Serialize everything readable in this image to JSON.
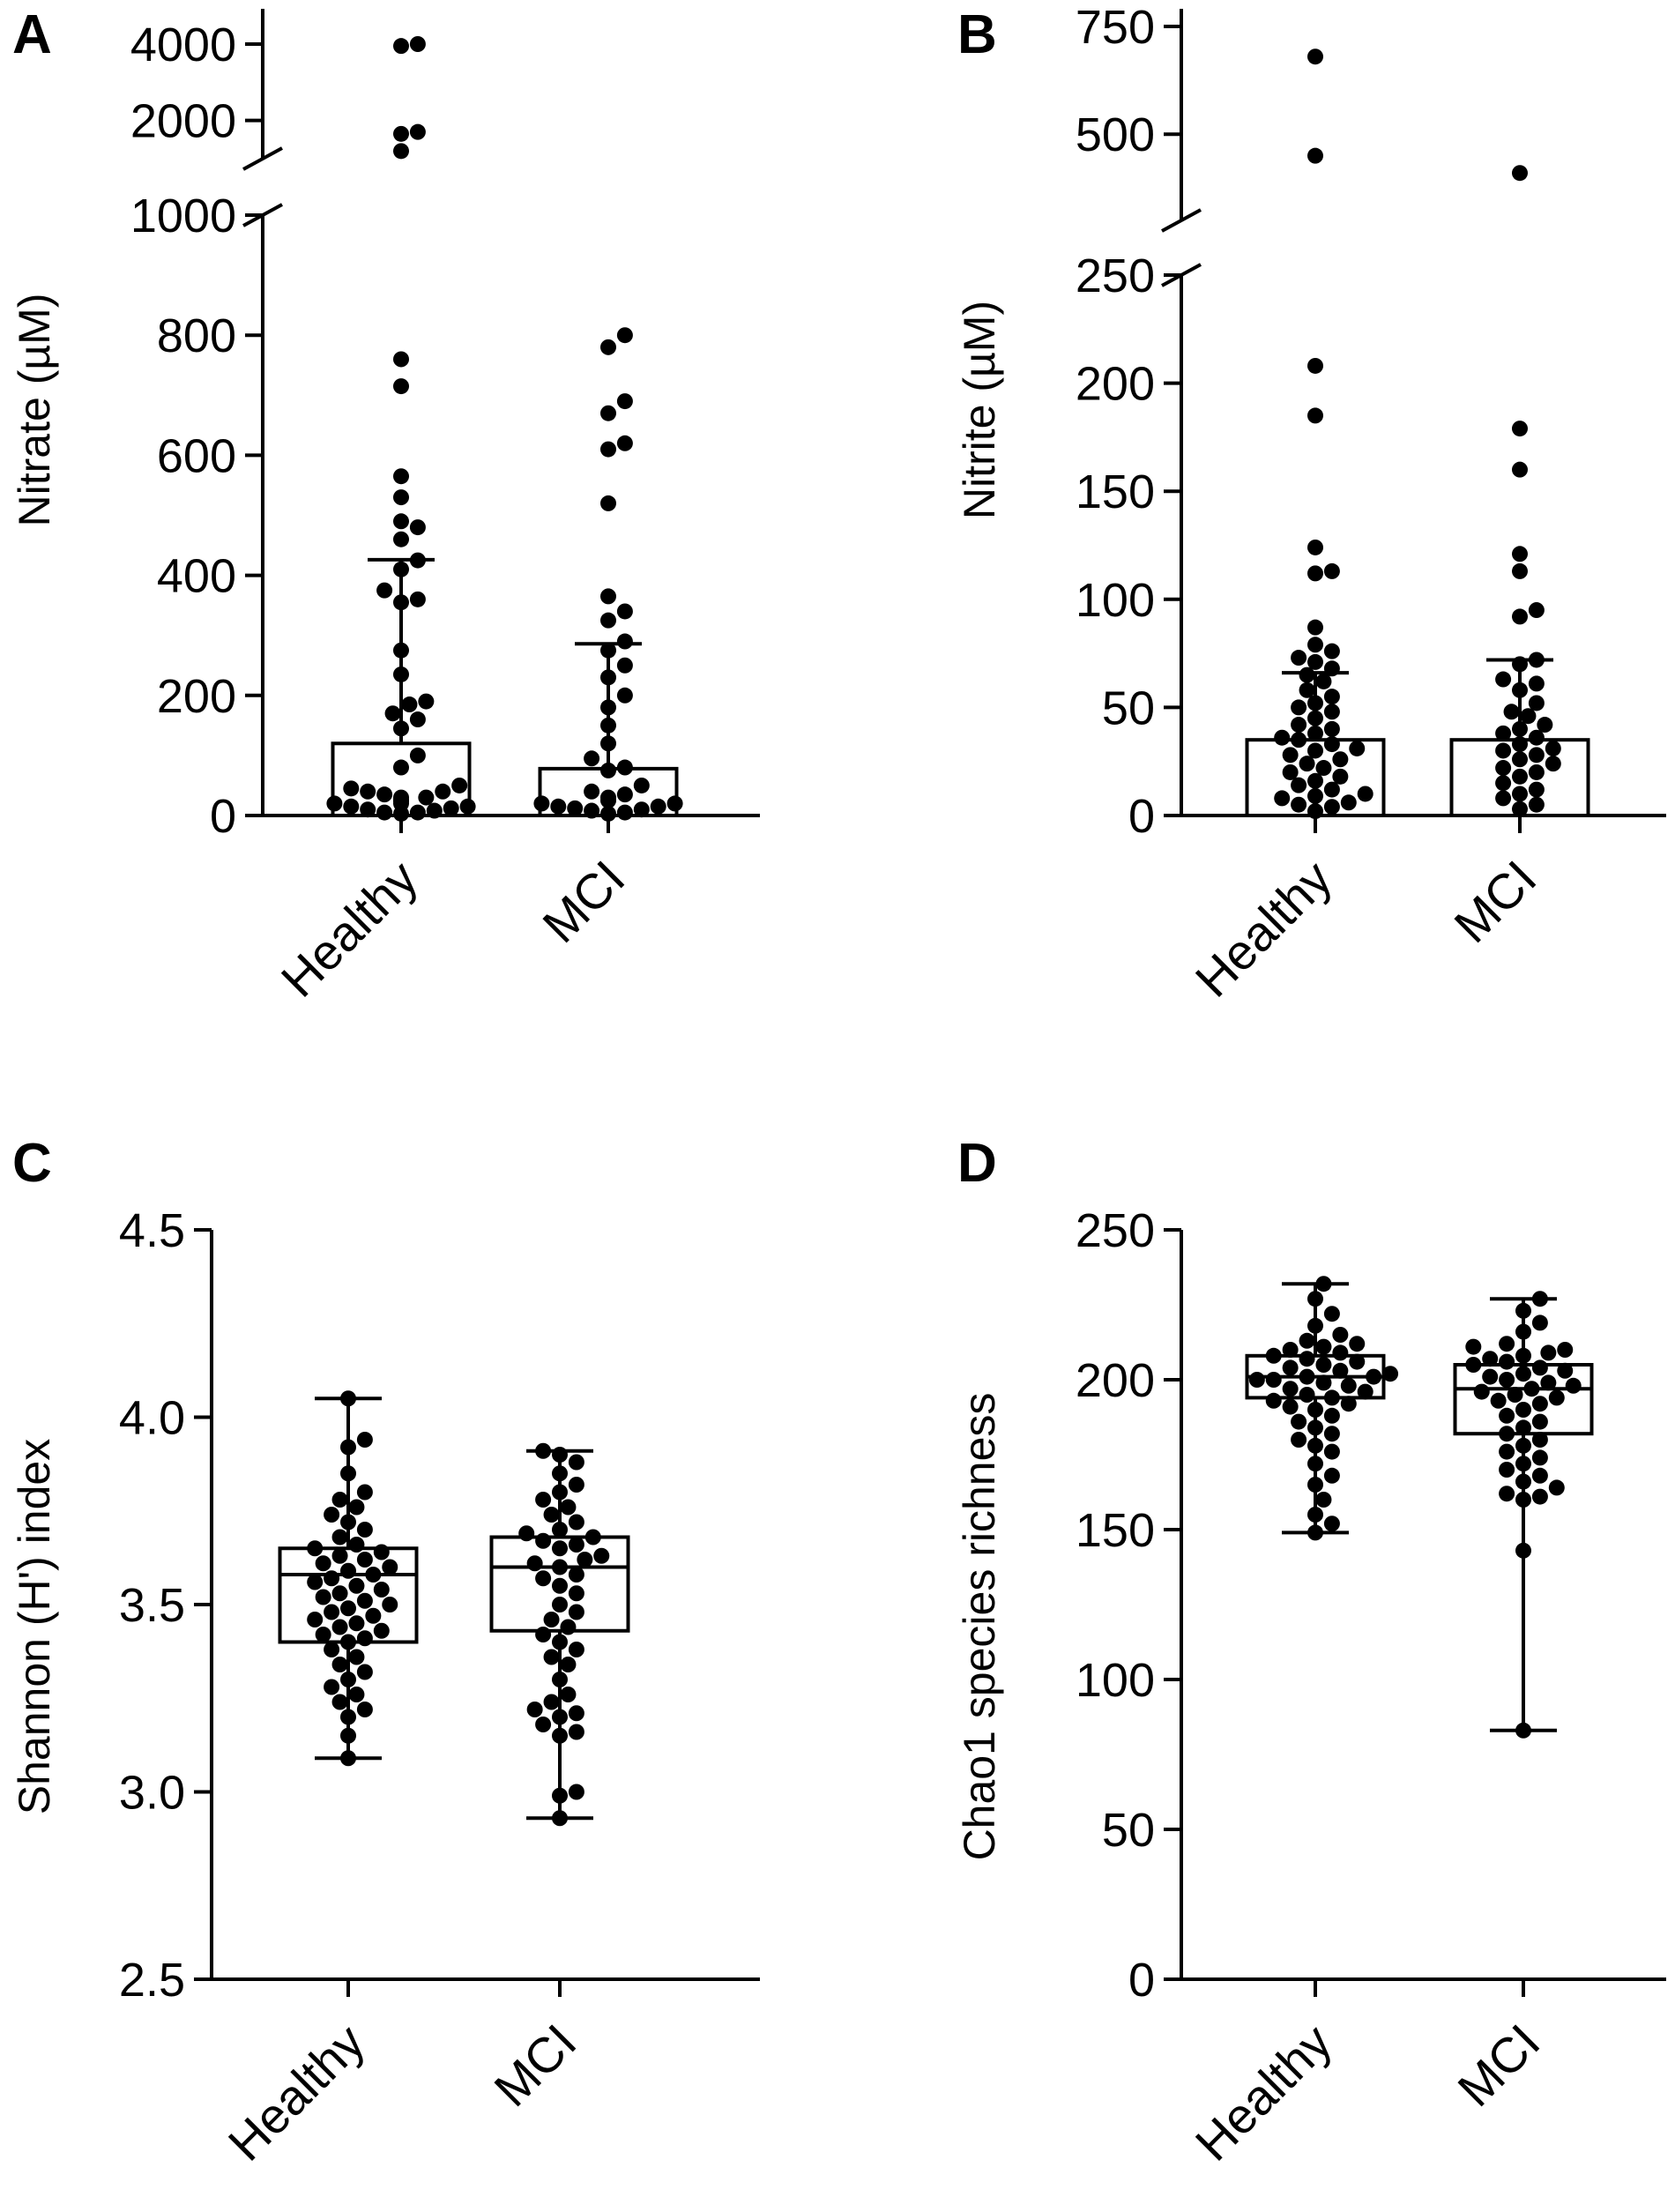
{
  "chart_data": [
    {
      "id": "A",
      "panel_label": "A",
      "type": "bar",
      "ylabel": "Nitrate (µM)",
      "categories": [
        "Healthy",
        "MCI"
      ],
      "y_segments": [
        {
          "ylim": [
            0,
            1000
          ],
          "ticks": [
            0,
            200,
            400,
            600,
            800,
            1000
          ]
        },
        {
          "ylim": [
            1000,
            4000
          ],
          "ticks": [
            2000,
            4000
          ]
        }
      ],
      "y_tick_labels": [
        "0",
        "200",
        "400",
        "600",
        "800",
        "1000",
        "2000",
        "4000"
      ],
      "series": [
        {
          "category": "Healthy",
          "bar": 120,
          "error": [
            null,
            426
          ],
          "points": [
            4000,
            3950,
            1700,
            1650,
            1200,
            760,
            715,
            565,
            530,
            490,
            480,
            460,
            425,
            410,
            375,
            360,
            355,
            275,
            235,
            190,
            185,
            170,
            160,
            145,
            100,
            80,
            50,
            45,
            40,
            40,
            35,
            30,
            30,
            25,
            25,
            20,
            20,
            15,
            15,
            12,
            10,
            8,
            5,
            5,
            3
          ]
        },
        {
          "category": "MCI",
          "bar": 78,
          "error": [
            null,
            286
          ],
          "points": [
            800,
            780,
            690,
            670,
            620,
            610,
            520,
            365,
            340,
            325,
            290,
            275,
            250,
            230,
            200,
            180,
            150,
            120,
            95,
            80,
            75,
            50,
            40,
            35,
            30,
            25,
            20,
            20,
            15,
            15,
            12,
            10,
            8,
            5,
            3
          ]
        }
      ]
    },
    {
      "id": "B",
      "panel_label": "B",
      "type": "bar",
      "ylabel": "Nitrite (µM)",
      "categories": [
        "Healthy",
        "MCI"
      ],
      "y_segments": [
        {
          "ylim": [
            0,
            250
          ],
          "ticks": [
            0,
            50,
            100,
            150,
            200,
            250
          ]
        },
        {
          "ylim": [
            300,
            750
          ],
          "ticks": [
            500,
            750
          ]
        }
      ],
      "y_tick_labels": [
        "0",
        "50",
        "100",
        "150",
        "200",
        "250",
        "500",
        "750"
      ],
      "series": [
        {
          "category": "Healthy",
          "bar": 35,
          "error": [
            null,
            66
          ],
          "points": [
            680,
            450,
            208,
            185,
            124,
            113,
            112,
            87,
            79,
            76,
            73,
            71,
            68,
            65,
            62,
            58,
            55,
            52,
            50,
            48,
            45,
            42,
            40,
            38,
            36,
            35,
            33,
            31,
            30,
            28,
            26,
            24,
            22,
            20,
            18,
            16,
            14,
            12,
            10,
            9,
            8,
            6,
            5,
            4,
            2
          ]
        },
        {
          "category": "MCI",
          "bar": 35,
          "error": [
            null,
            72
          ],
          "points": [
            410,
            179,
            160,
            121,
            113,
            95,
            92,
            72,
            70,
            63,
            61,
            58,
            52,
            48,
            46,
            42,
            40,
            38,
            36,
            33,
            31,
            30,
            28,
            26,
            24,
            22,
            20,
            18,
            15,
            12,
            10,
            8,
            5,
            3
          ]
        }
      ]
    },
    {
      "id": "C",
      "panel_label": "C",
      "type": "box",
      "ylabel": "Shannon (H') index",
      "categories": [
        "Healthy",
        "MCI"
      ],
      "ylim": [
        2.5,
        4.5
      ],
      "ticks": [
        2.5,
        3.0,
        3.5,
        4.0,
        4.5
      ],
      "y_tick_labels": [
        "2.5",
        "3.0",
        "3.5",
        "4.0",
        "4.5"
      ],
      "series": [
        {
          "category": "Healthy",
          "min": 3.09,
          "q1": 3.4,
          "median": 3.58,
          "q3": 3.65,
          "max": 4.05,
          "points": [
            4.05,
            3.94,
            3.92,
            3.85,
            3.8,
            3.78,
            3.76,
            3.74,
            3.72,
            3.7,
            3.68,
            3.66,
            3.65,
            3.64,
            3.63,
            3.62,
            3.61,
            3.6,
            3.59,
            3.58,
            3.57,
            3.56,
            3.55,
            3.54,
            3.53,
            3.52,
            3.51,
            3.5,
            3.49,
            3.48,
            3.47,
            3.46,
            3.45,
            3.44,
            3.43,
            3.42,
            3.41,
            3.4,
            3.38,
            3.36,
            3.34,
            3.32,
            3.3,
            3.28,
            3.26,
            3.24,
            3.22,
            3.2,
            3.15,
            3.09
          ]
        },
        {
          "category": "MCI",
          "min": 2.93,
          "q1": 3.43,
          "median": 3.6,
          "q3": 3.68,
          "max": 3.91,
          "points": [
            3.91,
            3.9,
            3.88,
            3.85,
            3.82,
            3.8,
            3.78,
            3.76,
            3.74,
            3.72,
            3.7,
            3.69,
            3.68,
            3.67,
            3.66,
            3.65,
            3.63,
            3.62,
            3.61,
            3.6,
            3.58,
            3.57,
            3.55,
            3.53,
            3.5,
            3.48,
            3.46,
            3.44,
            3.42,
            3.4,
            3.38,
            3.36,
            3.34,
            3.3,
            3.26,
            3.24,
            3.22,
            3.21,
            3.2,
            3.18,
            3.16,
            3.15,
            3.0,
            2.99,
            2.93
          ]
        }
      ]
    },
    {
      "id": "D",
      "panel_label": "D",
      "type": "box",
      "ylabel": "Chao1 species richness",
      "categories": [
        "Healthy",
        "MCI"
      ],
      "ylim": [
        0,
        250
      ],
      "ticks": [
        0,
        50,
        100,
        150,
        200,
        250
      ],
      "y_tick_labels": [
        "0",
        "50",
        "100",
        "150",
        "200",
        "250"
      ],
      "series": [
        {
          "category": "Healthy",
          "min": 149,
          "q1": 194,
          "median": 201,
          "q3": 208,
          "max": 232,
          "points": [
            232,
            227,
            222,
            218,
            215,
            213,
            212,
            211,
            210,
            209,
            208,
            207,
            206,
            205,
            204,
            203,
            202,
            201,
            201,
            200,
            200,
            199,
            198,
            197,
            196,
            195,
            194,
            193,
            192,
            191,
            190,
            188,
            186,
            184,
            182,
            180,
            178,
            176,
            172,
            168,
            165,
            160,
            155,
            152,
            149
          ]
        },
        {
          "category": "MCI",
          "min": 83,
          "q1": 182,
          "median": 197,
          "q3": 205,
          "max": 227,
          "points": [
            227,
            223,
            219,
            216,
            212,
            211,
            210,
            209,
            208,
            207,
            206,
            205,
            204,
            203,
            202,
            201,
            200,
            199,
            198,
            197,
            196,
            195,
            194,
            193,
            192,
            190,
            188,
            186,
            184,
            182,
            180,
            178,
            176,
            174,
            172,
            170,
            168,
            166,
            164,
            162,
            161,
            160,
            143,
            83
          ]
        }
      ]
    }
  ]
}
